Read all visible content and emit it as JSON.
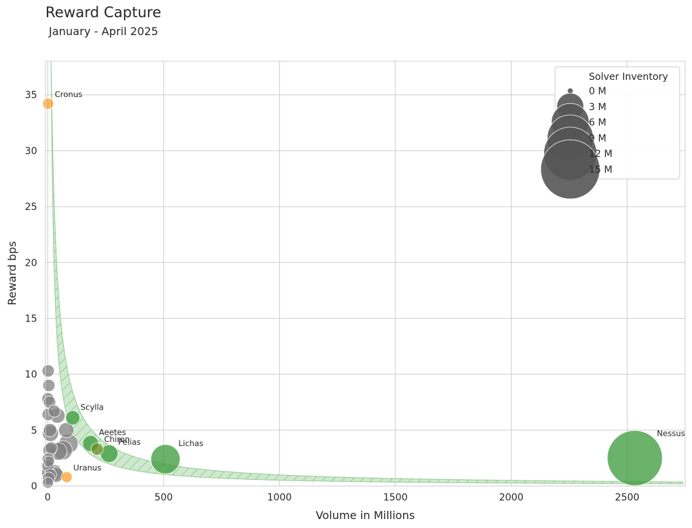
{
  "chart_data": {
    "type": "scatter",
    "title": "Reward Capture",
    "subtitle": "January - April 2025",
    "xlabel": "Volume in Millions",
    "ylabel": "Reward bps",
    "xlim": [
      -10,
      2750
    ],
    "ylim": [
      0,
      38
    ],
    "xticks": [
      0,
      500,
      1000,
      1500,
      2000,
      2500
    ],
    "yticks": [
      0,
      5,
      10,
      15,
      20,
      25,
      30,
      35
    ],
    "grid": true,
    "band": {
      "description": "shaded hatched band",
      "color": "#7fc97f"
    },
    "legend": {
      "title": "Solver Inventory",
      "placement": "top-right",
      "entries": [
        {
          "label": "0 M",
          "size": 0
        },
        {
          "label": "3 M",
          "size": 3
        },
        {
          "label": "6 M",
          "size": 6
        },
        {
          "label": "9 M",
          "size": 9
        },
        {
          "label": "12 M",
          "size": 12
        },
        {
          "label": "15 M",
          "size": 15
        }
      ]
    },
    "colors": {
      "grey": "#808080",
      "green": "#3a9a3a",
      "orange": "#ff9f2e",
      "olive": "#6b8e23"
    },
    "points": [
      {
        "label": "Cronus",
        "x": 2,
        "y": 34.2,
        "size": 0.3,
        "color": "orange"
      },
      {
        "label": "Scylla",
        "x": 108,
        "y": 6.1,
        "size": 0.6,
        "color": "green"
      },
      {
        "label": "Aeetes",
        "x": 185,
        "y": 3.8,
        "size": 0.8,
        "color": "green"
      },
      {
        "label": "Chiron",
        "x": 213,
        "y": 3.3,
        "size": 0.4,
        "color": "olive"
      },
      {
        "label": "Pelias",
        "x": 265,
        "y": 2.9,
        "size": 1.0,
        "color": "green"
      },
      {
        "label": "Lichas",
        "x": 508,
        "y": 2.4,
        "size": 3.0,
        "color": "green"
      },
      {
        "label": "Uranus",
        "x": 82,
        "y": 0.8,
        "size": 0.3,
        "color": "orange"
      },
      {
        "label": "Nessus",
        "x": 2533,
        "y": 2.5,
        "size": 11.0,
        "color": "green"
      },
      {
        "label": "",
        "x": 2,
        "y": 10.3,
        "size": 0.4,
        "color": "grey"
      },
      {
        "label": "",
        "x": 5,
        "y": 9.0,
        "size": 0.4,
        "color": "grey"
      },
      {
        "label": "",
        "x": 1,
        "y": 7.8,
        "size": 0.4,
        "color": "grey"
      },
      {
        "label": "",
        "x": 8,
        "y": 7.5,
        "size": 0.4,
        "color": "grey"
      },
      {
        "label": "",
        "x": 2,
        "y": 6.4,
        "size": 0.4,
        "color": "grey"
      },
      {
        "label": "",
        "x": 28,
        "y": 6.7,
        "size": 0.4,
        "color": "grey"
      },
      {
        "label": "",
        "x": 42,
        "y": 6.3,
        "size": 0.7,
        "color": "grey"
      },
      {
        "label": "",
        "x": 10,
        "y": 5.0,
        "size": 0.5,
        "color": "grey"
      },
      {
        "label": "",
        "x": 12,
        "y": 4.7,
        "size": 0.8,
        "color": "grey"
      },
      {
        "label": "",
        "x": 80,
        "y": 5.0,
        "size": 0.7,
        "color": "grey"
      },
      {
        "label": "",
        "x": 90,
        "y": 3.8,
        "size": 1.2,
        "color": "grey"
      },
      {
        "label": "",
        "x": 15,
        "y": 3.4,
        "size": 0.4,
        "color": "grey"
      },
      {
        "label": "",
        "x": 8,
        "y": 3.2,
        "size": 0.5,
        "color": "grey"
      },
      {
        "label": "",
        "x": 45,
        "y": 3.1,
        "size": 1.0,
        "color": "grey"
      },
      {
        "label": "",
        "x": 65,
        "y": 3.2,
        "size": 1.2,
        "color": "grey"
      },
      {
        "label": "",
        "x": 2,
        "y": 2.4,
        "size": 0.4,
        "color": "grey"
      },
      {
        "label": "",
        "x": 5,
        "y": 2.2,
        "size": 0.3,
        "color": "grey"
      },
      {
        "label": "",
        "x": 1,
        "y": 1.8,
        "size": 0.4,
        "color": "grey"
      },
      {
        "label": "",
        "x": 2,
        "y": 1.2,
        "size": 0.5,
        "color": "grey"
      },
      {
        "label": "",
        "x": 28,
        "y": 1.2,
        "size": 0.8,
        "color": "grey"
      },
      {
        "label": "",
        "x": 35,
        "y": 1.0,
        "size": 0.7,
        "color": "grey"
      },
      {
        "label": "",
        "x": 12,
        "y": 1.0,
        "size": 0.4,
        "color": "grey"
      },
      {
        "label": "",
        "x": 4,
        "y": 0.7,
        "size": 0.4,
        "color": "grey"
      },
      {
        "label": "",
        "x": 1,
        "y": 0.3,
        "size": 0.3,
        "color": "grey"
      }
    ]
  }
}
